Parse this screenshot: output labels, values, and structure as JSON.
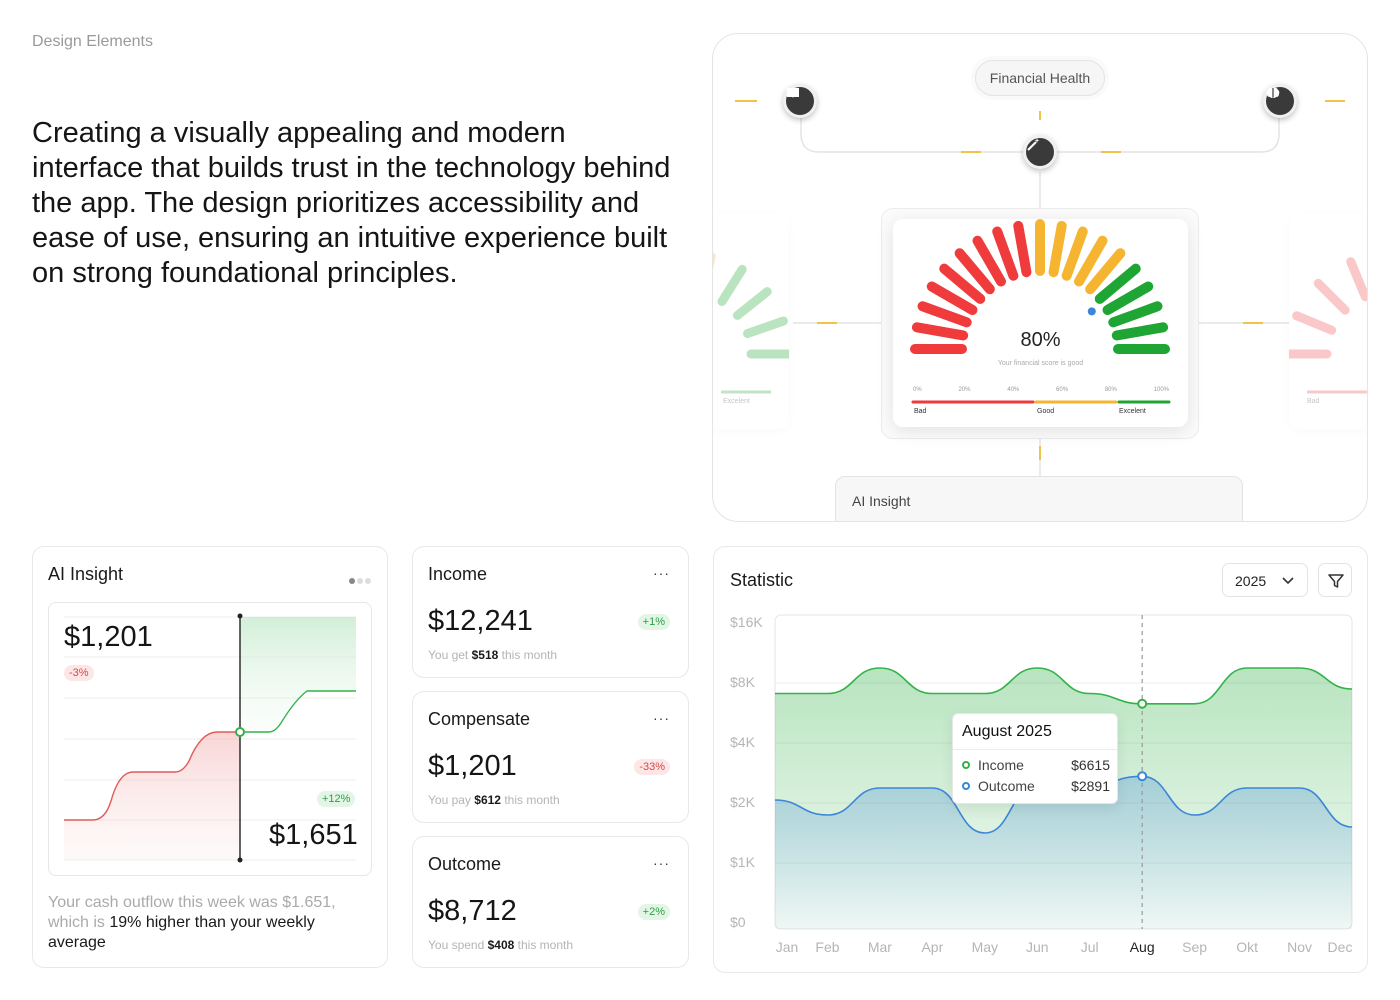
{
  "page": {
    "section_label": "Design Elements",
    "headline": "Creating a visually appealing and modern interface that builds trust in the technology behind the app. The design prioritizes accessibility and ease of use, ensuring an intuitive experience built on strong foundational principles."
  },
  "showcase": {
    "pill_label": "Financial Health",
    "node_icons": [
      "book-icon",
      "magic-wand-icon",
      "brain-icon"
    ],
    "gauge": {
      "score_percent": "80%",
      "score_value": 0.8,
      "caption": "Your financial score is good",
      "ticks": [
        "0%",
        "20%",
        "40%",
        "60%",
        "80%",
        "100%"
      ],
      "categories": [
        "Bad",
        "Good",
        "Excelent"
      ],
      "colors": {
        "bad": "#ef3b3b",
        "mid": "#f5b531",
        "good": "#1fa533"
      }
    },
    "ghost_left_label": "Excelent",
    "ghost_right_label": "Bad",
    "ai_insight_label": "AI Insight"
  },
  "ai_card": {
    "title": "AI Insight",
    "value_top": "$1,201",
    "badge_top": "-3%",
    "badge_bottom": "+12%",
    "value_bottom": "$1,651",
    "text_muted": "Your cash outflow this week was $1.651, which is ",
    "text_dark": "19% higher than your weekly average"
  },
  "metric_cards": [
    {
      "title": "Income",
      "value": "$12,241",
      "badge": "+1%",
      "badge_type": "pos",
      "sub_prefix": "You get",
      "sub_amount": "$518",
      "sub_suffix": "this month"
    },
    {
      "title": "Compensate",
      "value": "$1,201",
      "badge": "-33%",
      "badge_type": "neg",
      "sub_prefix": "You pay",
      "sub_amount": "$612",
      "sub_suffix": "this month"
    },
    {
      "title": "Outcome",
      "value": "$8,712",
      "badge": "+2%",
      "badge_type": "pos",
      "sub_prefix": "You spend",
      "sub_amount": "$408",
      "sub_suffix": "this month"
    }
  ],
  "menu_dots": "···",
  "statistic": {
    "title": "Statistic",
    "year": "2025",
    "colors": {
      "income": "#34b24a",
      "outcome": "#3b86d8"
    },
    "chart_data": {
      "type": "area",
      "categories": [
        "Jan",
        "Feb",
        "Mar",
        "Apr",
        "May",
        "Jun",
        "Jul",
        "Aug",
        "Sep",
        "Okt",
        "Nov",
        "Dec"
      ],
      "y_ticks": [
        "$16K",
        "$8K",
        "$4K",
        "$2K",
        "$1K",
        "$0"
      ],
      "highlight": "Aug",
      "series": [
        {
          "name": "Income",
          "values": [
            7300,
            7300,
            10000,
            7300,
            7300,
            10000,
            7300,
            6615,
            6615,
            10000,
            10000,
            7600
          ]
        },
        {
          "name": "Outcome",
          "values": [
            2100,
            1800,
            2500,
            2500,
            1500,
            2600,
            2600,
            2891,
            1800,
            2500,
            2500,
            1600
          ]
        }
      ]
    },
    "tooltip": {
      "title": "August 2025",
      "rows": [
        {
          "label": "Income",
          "value": "$6615"
        },
        {
          "label": "Outcome",
          "value": "$2891"
        }
      ]
    }
  }
}
